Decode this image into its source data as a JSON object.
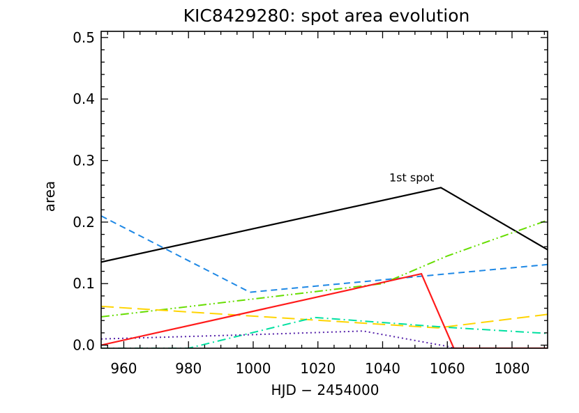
{
  "chart_data": {
    "type": "line",
    "title": "KIC8429280: spot area evolution",
    "xlabel": "HJD − 2454000",
    "ylabel": "area",
    "xlim": [
      953,
      1091
    ],
    "ylim": [
      -0.005,
      0.51
    ],
    "xticks": [
      960,
      980,
      1000,
      1020,
      1040,
      1060,
      1080
    ],
    "yticks": [
      0.0,
      0.1,
      0.2,
      0.3,
      0.4,
      0.5
    ],
    "ytick_labels": [
      "0.0",
      "0.1",
      "0.2",
      "0.3",
      "0.4",
      "0.5"
    ],
    "grid": false,
    "annotations": [
      {
        "text": "1st spot",
        "x": 1049,
        "y": 0.266
      }
    ],
    "series": [
      {
        "color": "#000000",
        "style": "solid",
        "x": [
          953,
          1058,
          1091
        ],
        "y": [
          0.135,
          0.256,
          0.155
        ]
      },
      {
        "color": "#1e88e5",
        "style": "dashed",
        "x": [
          953,
          999,
          1058,
          1091
        ],
        "y": [
          0.21,
          0.086,
          0.115,
          0.131
        ]
      },
      {
        "color": "#66dd00",
        "style": "dash-dot-dot",
        "x": [
          953,
          1000,
          1040,
          1060,
          1091
        ],
        "y": [
          0.046,
          0.075,
          0.1,
          0.145,
          0.203
        ]
      },
      {
        "color": "#ffd400",
        "style": "long-dash",
        "x": [
          953,
          1057,
          1091
        ],
        "y": [
          0.063,
          0.028,
          0.05
        ]
      },
      {
        "color": "#00e0a0",
        "style": "dash-dot",
        "x": [
          953,
          980,
          1019,
          1060,
          1091
        ],
        "y": [
          -0.005,
          -0.005,
          0.045,
          0.029,
          0.019
        ]
      },
      {
        "color": "#5522aa",
        "style": "dotted",
        "x": [
          953,
          999,
          1034,
          1060,
          1062
        ],
        "y": [
          0.01,
          0.017,
          0.023,
          -0.002,
          -0.005
        ]
      },
      {
        "color": "#ff1a1a",
        "style": "solid",
        "x": [
          953,
          1052,
          1062,
          1091
        ],
        "y": [
          0.0,
          0.116,
          -0.005,
          -0.005
        ]
      }
    ]
  }
}
